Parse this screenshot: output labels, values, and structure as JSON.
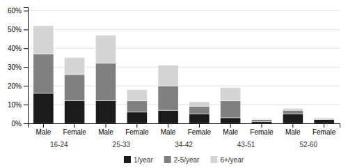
{
  "chart_data": {
    "type": "bar",
    "stacked": true,
    "categories": [
      "Male",
      "Female",
      "Male",
      "Female",
      "Male",
      "Female",
      "Male",
      "Female",
      "Male",
      "Female"
    ],
    "annotations": [
      "16-24",
      "25-33",
      "34-42",
      "43-51",
      "52-60"
    ],
    "series": [
      {
        "name": "1/year",
        "color": "#1a1a1a",
        "values": [
          16,
          12,
          12,
          6,
          7,
          5,
          3,
          1,
          5,
          2
        ]
      },
      {
        "name": "2-5/year",
        "color": "#808080",
        "values": [
          21,
          14,
          20,
          6,
          13,
          4,
          9,
          1,
          2,
          0.5
        ]
      },
      {
        "name": "6+/year",
        "color": "#d4d4d4",
        "values": [
          15,
          9,
          15,
          6,
          11,
          2.5,
          7,
          0.5,
          1,
          0.5
        ]
      }
    ],
    "ylim": [
      0,
      62
    ],
    "yticks": [
      {
        "value": 0,
        "label": "0%"
      },
      {
        "value": 10,
        "label": "10%"
      },
      {
        "value": 20,
        "label": "20%"
      },
      {
        "value": 30,
        "label": "30%"
      },
      {
        "value": 40,
        "label": "40%"
      },
      {
        "value": 50,
        "label": "50%"
      },
      {
        "value": 60,
        "label": "60%"
      }
    ],
    "grid": true,
    "legend": "bottom"
  }
}
